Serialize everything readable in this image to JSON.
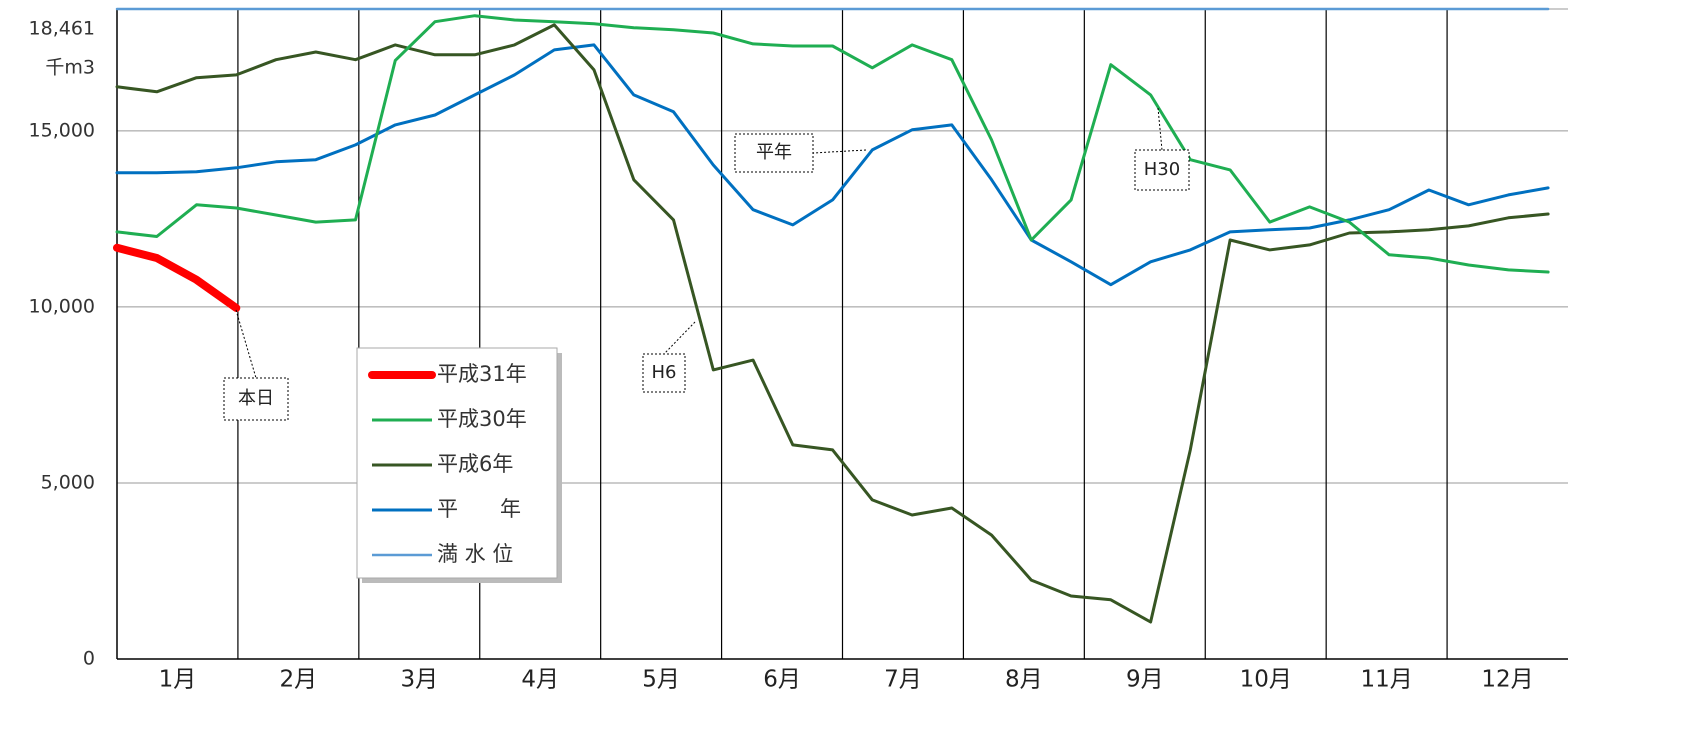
{
  "chart_data": {
    "type": "line",
    "y_unit": "千m3",
    "categories": [
      "1月",
      "2月",
      "3月",
      "4月",
      "5月",
      "6月",
      "7月",
      "8月",
      "9月",
      "10月",
      "11月",
      "12月"
    ],
    "x": [
      0,
      10,
      20,
      30,
      40,
      50,
      60,
      70,
      80,
      90,
      100,
      110,
      120,
      130,
      140,
      150,
      160,
      170,
      180,
      190,
      200,
      210,
      220,
      230,
      240,
      250,
      260,
      270,
      280,
      290,
      300,
      310,
      320,
      330,
      340,
      350,
      360
    ],
    "xlim": [
      0,
      365
    ],
    "ylim": [
      0,
      18461
    ],
    "yticks": [
      0,
      {
        "value": 5000,
        "label": "5,000"
      },
      {
        "value": 10000,
        "label": "10,000"
      },
      {
        "value": 15000,
        "label": "15,000"
      },
      {
        "value": 18461,
        "label": "18,461"
      }
    ],
    "grid": true,
    "series": [
      {
        "name": "平成31年",
        "color": "#ff0000",
        "values": [
          11680,
          11390,
          10770,
          9970,
          null,
          null,
          null,
          null,
          null,
          null,
          null,
          null,
          null,
          null,
          null,
          null,
          null,
          null,
          null,
          null,
          null,
          null,
          null,
          null,
          null,
          null,
          null,
          null,
          null,
          null,
          null,
          null,
          null,
          null,
          null,
          null,
          null
        ]
      },
      {
        "name": "平成30年",
        "color": "#1fae52",
        "values": [
          12130,
          12000,
          12900,
          12810,
          12610,
          12410,
          12470,
          17000,
          18100,
          18270,
          18150,
          18100,
          18040,
          17930,
          17870,
          17780,
          17470,
          17410,
          17410,
          16790,
          17440,
          17020,
          14740,
          11900,
          13040,
          16880,
          16020,
          14180,
          13890,
          12410,
          12840,
          12410,
          11480,
          11390,
          11190,
          11050,
          10990
        ]
      },
      {
        "name": "平成6年",
        "color": "#375623",
        "values": [
          16250,
          16110,
          16510,
          16590,
          17020,
          17240,
          17020,
          17440,
          17160,
          17160,
          17440,
          18010,
          16730,
          13610,
          12470,
          8210,
          8490,
          6080,
          5940,
          4520,
          4090,
          4290,
          3520,
          2240,
          1790,
          1680,
          1050,
          5940,
          11900,
          11620,
          11760,
          12100,
          12130,
          12190,
          12300,
          12530,
          12640
        ]
      },
      {
        "name": "平　　年",
        "color": "#0070c0",
        "values": [
          13810,
          13810,
          13840,
          13950,
          14120,
          14180,
          14600,
          15170,
          15450,
          16020,
          16590,
          17300,
          17440,
          16020,
          15540,
          14030,
          12760,
          12330,
          13040,
          14460,
          15030,
          15170,
          13610,
          11900,
          11280,
          10630,
          11280,
          11620,
          12130,
          12190,
          12240,
          12470,
          12760,
          13320,
          12900,
          13180,
          13380
        ]
      },
      {
        "name": "満 水 位",
        "color": "#5b9bd5",
        "values": [
          18461,
          18461,
          18461,
          18461,
          18461,
          18461,
          18461,
          18461,
          18461,
          18461,
          18461,
          18461,
          18461,
          18461,
          18461,
          18461,
          18461,
          18461,
          18461,
          18461,
          18461,
          18461,
          18461,
          18461,
          18461,
          18461,
          18461,
          18461,
          18461,
          18461,
          18461,
          18461,
          18461,
          18461,
          18461,
          18461,
          18461
        ]
      }
    ],
    "annotations": [
      "本日",
      "平年",
      "H6",
      "H30"
    ]
  }
}
